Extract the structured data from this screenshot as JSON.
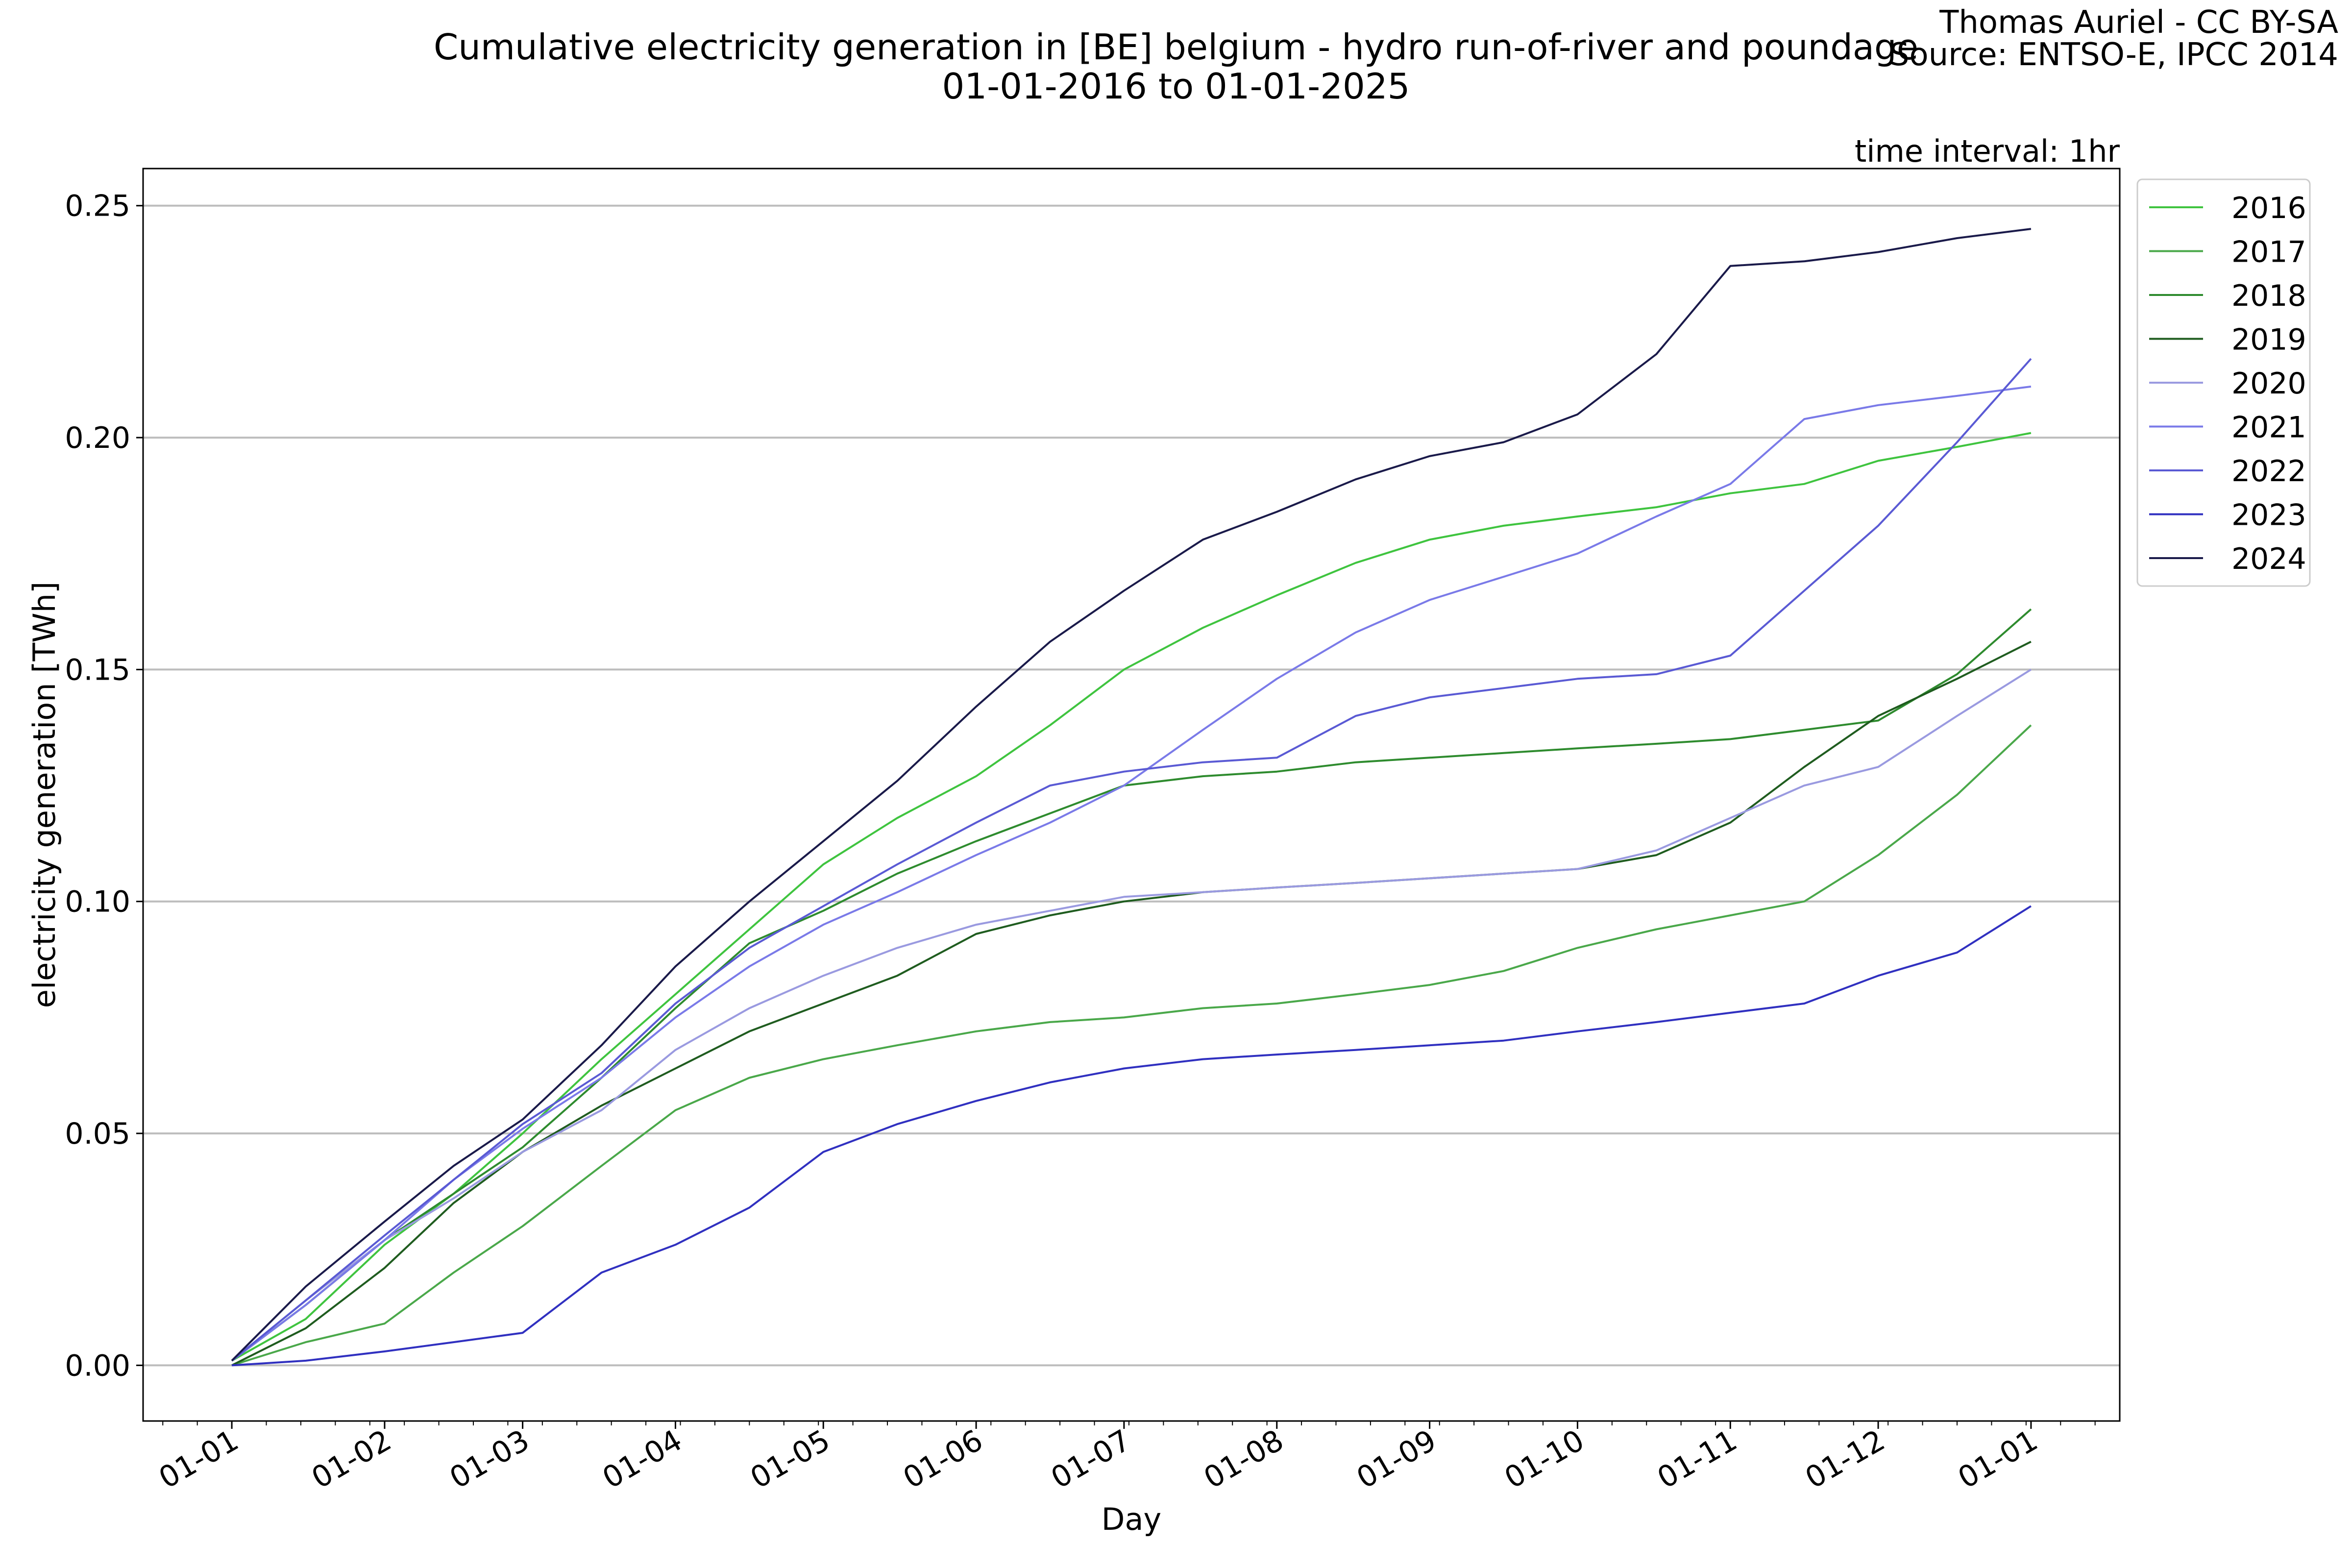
{
  "header": {
    "title_line1": "Cumulative electricity generation in [BE] belgium - hydro run-of-river and poundage",
    "title_line2": "01-01-2016 to 01-01-2025",
    "credit_line1": "Thomas Auriel - CC BY-SA",
    "credit_line2": "Source: ENTSO-E, IPCC 2014",
    "time_interval": "time interval: 1hr"
  },
  "chart_data": {
    "type": "line",
    "xlabel": "Day",
    "ylabel": "electricity generation [TWh]",
    "x_ticks": [
      "01-01",
      "01-02",
      "01-03",
      "01-04",
      "01-05",
      "01-06",
      "01-07",
      "01-08",
      "01-09",
      "01-10",
      "01-11",
      "01-12",
      "01-01"
    ],
    "x_tick_days": [
      0,
      31,
      59,
      90,
      120,
      151,
      181,
      212,
      243,
      273,
      304,
      334,
      365
    ],
    "xlim": [
      -18,
      383
    ],
    "ylim": [
      -0.012,
      0.258
    ],
    "y_ticks": [
      0.0,
      0.05,
      0.1,
      0.15,
      0.2,
      0.25
    ],
    "y_tick_labels": [
      "0.00",
      "0.05",
      "0.10",
      "0.15",
      "0.20",
      "0.25"
    ],
    "grid": "y",
    "legend_position": "upper right, outside",
    "x": [
      0,
      15,
      31,
      45,
      59,
      75,
      90,
      105,
      120,
      135,
      151,
      166,
      181,
      197,
      212,
      228,
      243,
      258,
      273,
      289,
      304,
      319,
      334,
      350,
      365
    ],
    "series": [
      {
        "name": "2016",
        "color": "#3fc43f",
        "values": [
          0.001,
          0.01,
          0.026,
          0.037,
          0.05,
          0.066,
          0.08,
          0.094,
          0.108,
          0.118,
          0.127,
          0.138,
          0.15,
          0.159,
          0.166,
          0.173,
          0.178,
          0.181,
          0.183,
          0.185,
          0.188,
          0.19,
          0.195,
          0.198,
          0.201
        ]
      },
      {
        "name": "2017",
        "color": "#4aa84a",
        "values": [
          0.0,
          0.005,
          0.009,
          0.02,
          0.03,
          0.043,
          0.055,
          0.062,
          0.066,
          0.069,
          0.072,
          0.074,
          0.075,
          0.077,
          0.078,
          0.08,
          0.082,
          0.085,
          0.09,
          0.094,
          0.097,
          0.1,
          0.11,
          0.123,
          0.138
        ]
      },
      {
        "name": "2018",
        "color": "#2e8b2e",
        "values": [
          0.001,
          0.013,
          0.027,
          0.037,
          0.047,
          0.062,
          0.077,
          0.091,
          0.098,
          0.106,
          0.113,
          0.119,
          0.125,
          0.127,
          0.128,
          0.13,
          0.131,
          0.132,
          0.133,
          0.134,
          0.135,
          0.137,
          0.139,
          0.149,
          0.163
        ]
      },
      {
        "name": "2019",
        "color": "#1f5c1f",
        "values": [
          0.0,
          0.008,
          0.021,
          0.035,
          0.046,
          0.056,
          0.064,
          0.072,
          0.078,
          0.084,
          0.093,
          0.097,
          0.1,
          0.102,
          0.103,
          0.104,
          0.105,
          0.106,
          0.107,
          0.11,
          0.117,
          0.129,
          0.14,
          0.148,
          0.156
        ]
      },
      {
        "name": "2020",
        "color": "#9a9ae0",
        "values": [
          0.001,
          0.014,
          0.027,
          0.036,
          0.046,
          0.055,
          0.068,
          0.077,
          0.084,
          0.09,
          0.095,
          0.098,
          0.101,
          0.102,
          0.103,
          0.104,
          0.105,
          0.106,
          0.107,
          0.111,
          0.118,
          0.125,
          0.129,
          0.14,
          0.15
        ]
      },
      {
        "name": "2021",
        "color": "#7a7ae8",
        "values": [
          0.001,
          0.013,
          0.027,
          0.04,
          0.051,
          0.062,
          0.075,
          0.086,
          0.095,
          0.102,
          0.11,
          0.117,
          0.125,
          0.137,
          0.148,
          0.158,
          0.165,
          0.17,
          0.175,
          0.183,
          0.19,
          0.204,
          0.207,
          0.209,
          0.211
        ]
      },
      {
        "name": "2022",
        "color": "#5a5ad4",
        "values": [
          0.001,
          0.014,
          0.028,
          0.04,
          0.052,
          0.063,
          0.078,
          0.09,
          0.099,
          0.108,
          0.117,
          0.125,
          0.128,
          0.13,
          0.131,
          0.14,
          0.144,
          0.146,
          0.148,
          0.149,
          0.153,
          0.167,
          0.181,
          0.199,
          0.217
        ]
      },
      {
        "name": "2023",
        "color": "#3030c0",
        "values": [
          0.0,
          0.001,
          0.003,
          0.005,
          0.007,
          0.02,
          0.026,
          0.034,
          0.046,
          0.052,
          0.057,
          0.061,
          0.064,
          0.066,
          0.067,
          0.068,
          0.069,
          0.07,
          0.072,
          0.074,
          0.076,
          0.078,
          0.084,
          0.089,
          0.099
        ]
      },
      {
        "name": "2024",
        "color": "#1a1a4a",
        "values": [
          0.001,
          0.017,
          0.031,
          0.043,
          0.053,
          0.069,
          0.086,
          0.1,
          0.113,
          0.126,
          0.142,
          0.156,
          0.167,
          0.178,
          0.184,
          0.191,
          0.196,
          0.199,
          0.205,
          0.218,
          0.237,
          0.238,
          0.24,
          0.243,
          0.245
        ]
      }
    ]
  }
}
